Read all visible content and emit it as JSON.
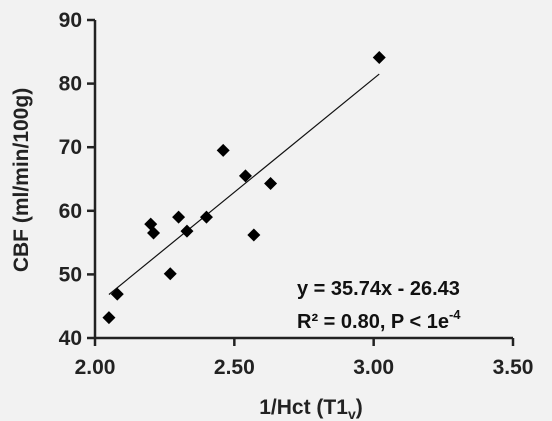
{
  "chart_data": {
    "type": "scatter",
    "title": "",
    "xlabel": "1/Hct (T1",
    "xlabel_sub": "v",
    "xlabel_close": ")",
    "ylabel": "CBF (ml/min/100g)",
    "xlim": [
      2.0,
      3.5
    ],
    "ylim": [
      40,
      90
    ],
    "xticks": [
      "2.00",
      "2.50",
      "3.00",
      "3.50"
    ],
    "yticks": [
      "40",
      "50",
      "60",
      "70",
      "80",
      "90"
    ],
    "grid": false,
    "points": [
      {
        "x": 2.05,
        "y": 43.2
      },
      {
        "x": 2.08,
        "y": 46.9
      },
      {
        "x": 2.2,
        "y": 57.9
      },
      {
        "x": 2.21,
        "y": 56.5
      },
      {
        "x": 2.27,
        "y": 50.1
      },
      {
        "x": 2.3,
        "y": 59.0
      },
      {
        "x": 2.33,
        "y": 56.8
      },
      {
        "x": 2.4,
        "y": 59.0
      },
      {
        "x": 2.46,
        "y": 69.5
      },
      {
        "x": 2.54,
        "y": 65.5
      },
      {
        "x": 2.57,
        "y": 56.2
      },
      {
        "x": 2.63,
        "y": 64.3
      },
      {
        "x": 3.02,
        "y": 84.1
      }
    ],
    "trendline": {
      "slope": 35.74,
      "intercept": -26.43,
      "x_start": 2.05,
      "x_end": 3.02
    },
    "annotation": {
      "equation": "y = 35.74x - 26.43",
      "stats_prefix": "R² = 0.80, P < 1e",
      "stats_exp": "-4"
    },
    "colors": {
      "marker": "#000000",
      "axis": "#222222",
      "line": "#111111",
      "background": "#f2f2f2"
    }
  }
}
